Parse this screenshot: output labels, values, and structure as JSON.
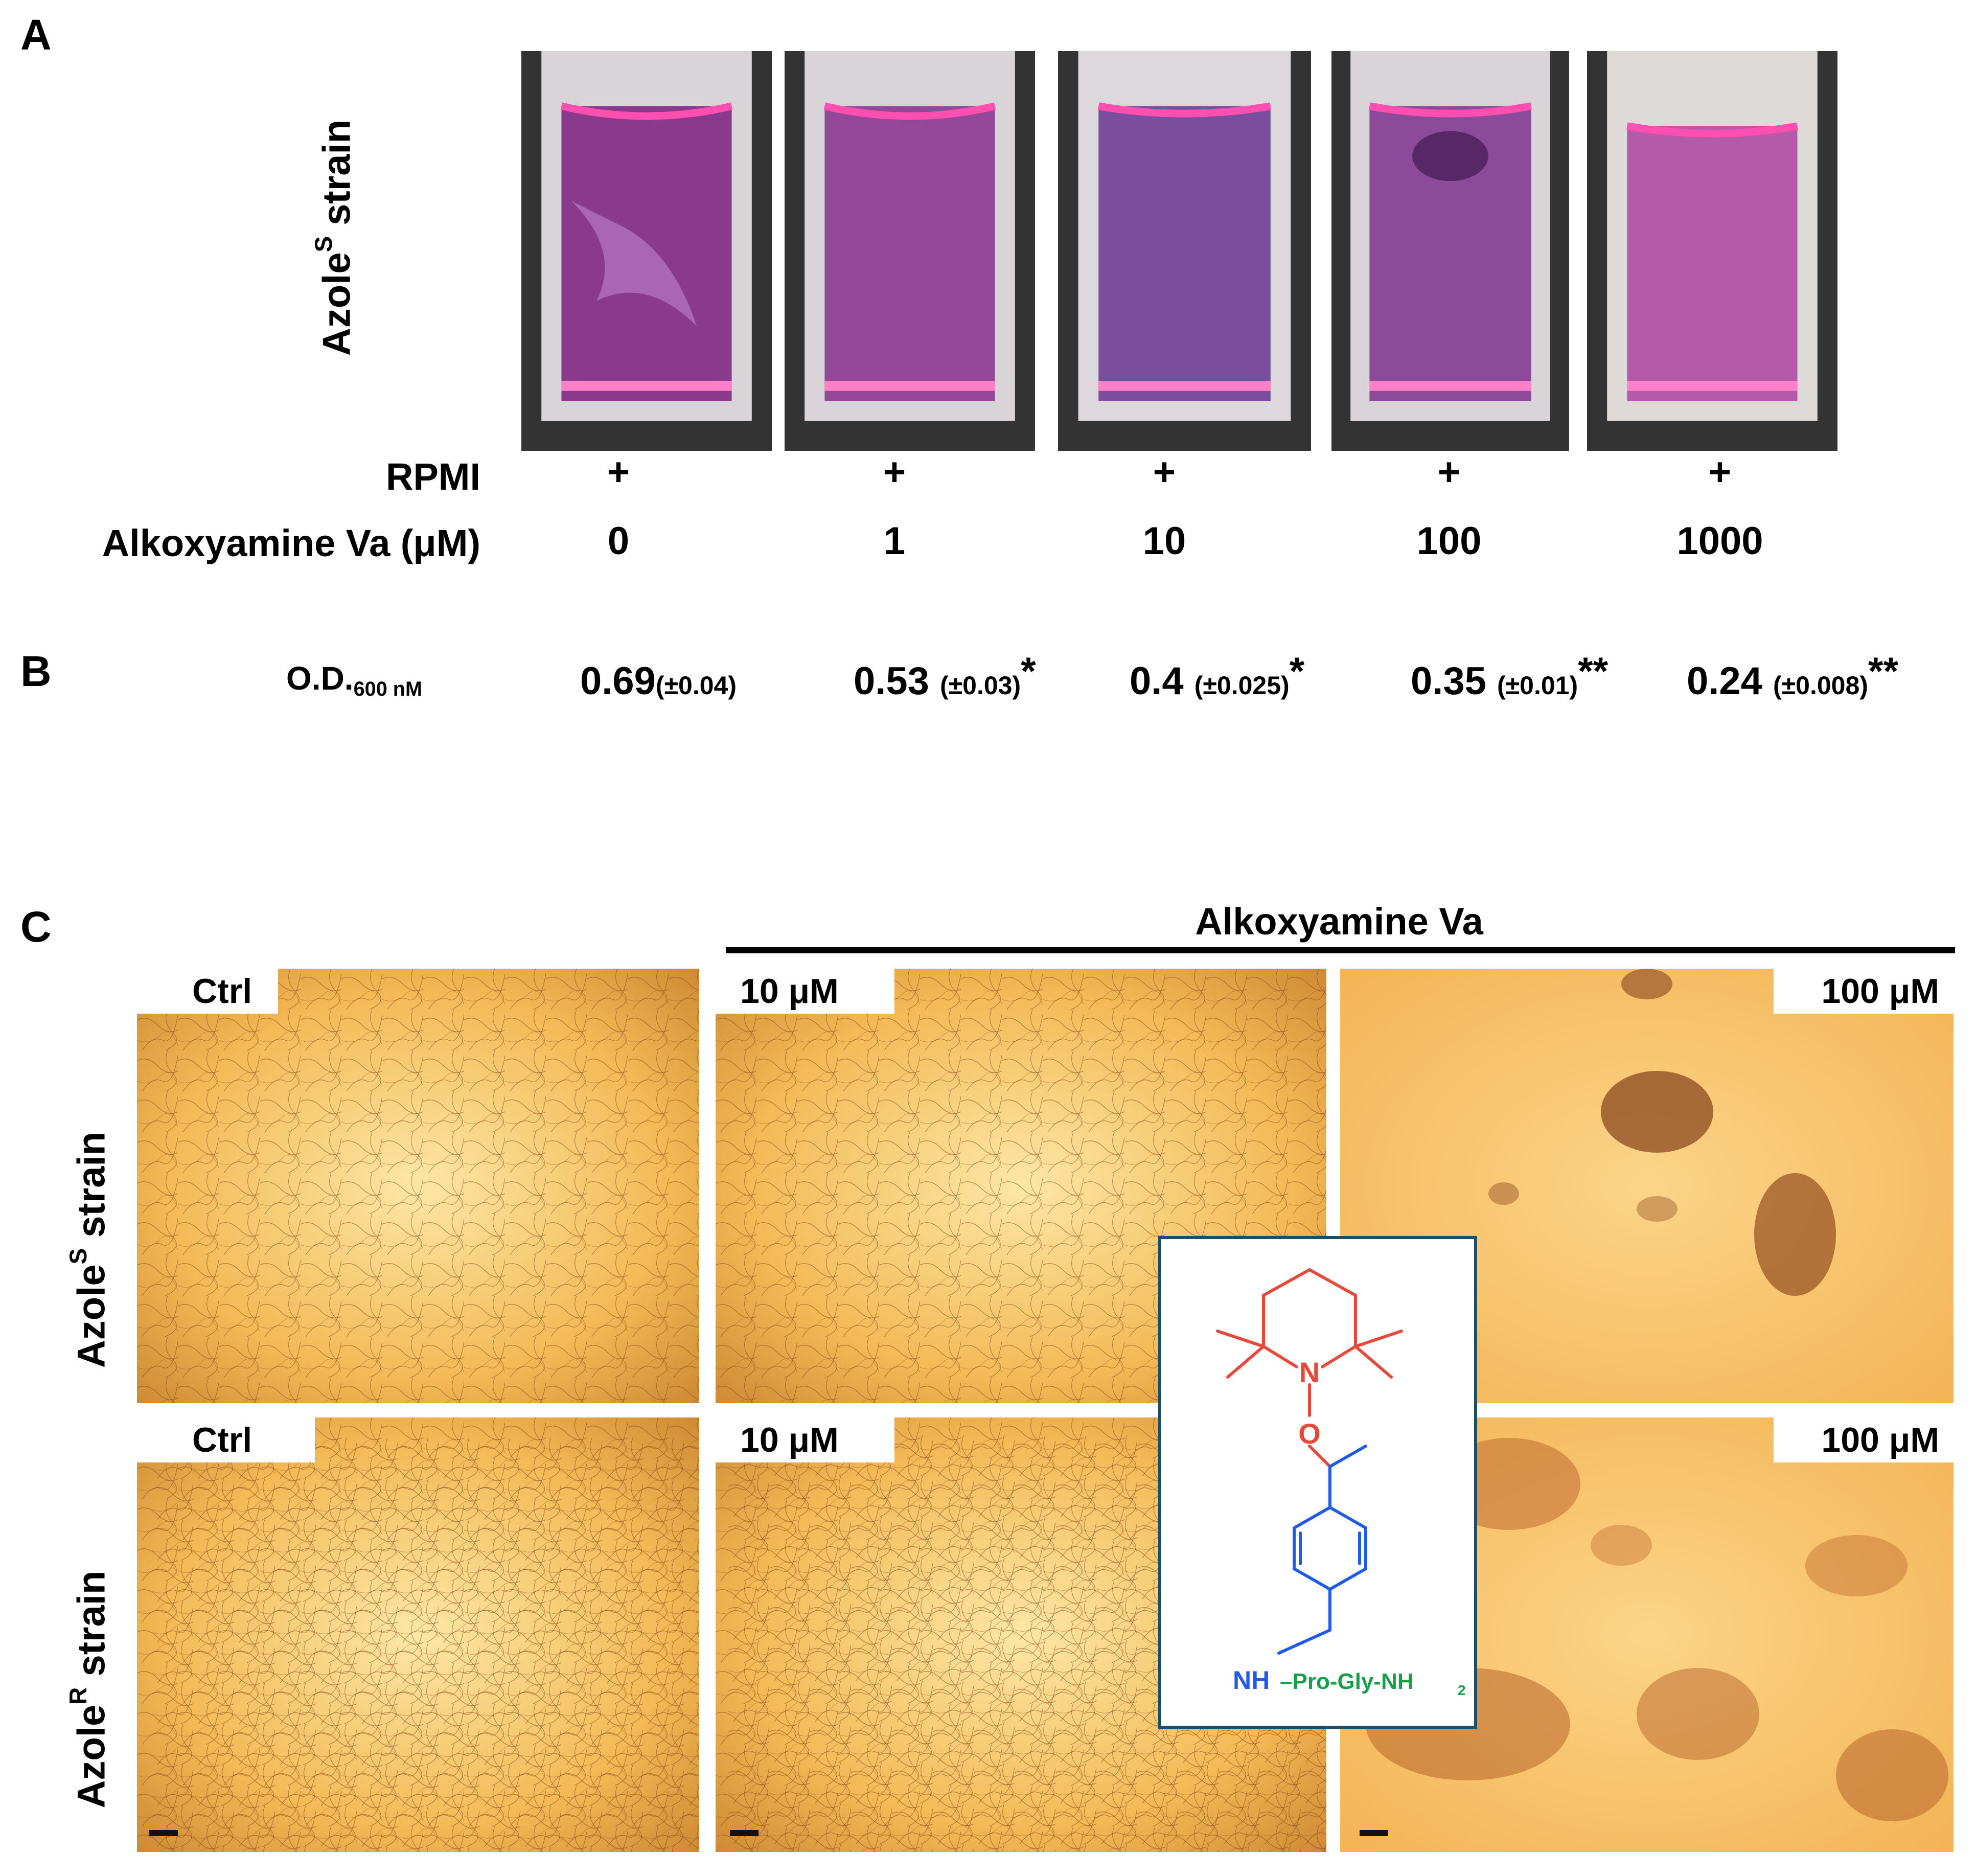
{
  "panelA": {
    "letter": "A",
    "ylabel_main": "Azole",
    "ylabel_sup": "S",
    "ylabel_tail": " strain",
    "rows": [
      {
        "label": "RPMI",
        "values": [
          "+",
          "+",
          "+",
          "+",
          "+"
        ]
      },
      {
        "label": "Alkoxyamine Va (μM)",
        "values": [
          "0",
          "1",
          "10",
          "100",
          "1000"
        ]
      }
    ]
  },
  "panelB": {
    "letter": "B",
    "od_label_main": "O.D.",
    "od_label_sub": "600 nM",
    "values": [
      {
        "value": "0.69",
        "sd": "(±0.04)",
        "sig": ""
      },
      {
        "value": "0.53",
        "sd": "(±0.03)",
        "sig": "*"
      },
      {
        "value": "0.4",
        "sd": "(±0.025)",
        "sig": "*"
      },
      {
        "value": "0.35",
        "sd": "(±0.01)",
        "sig": "**"
      },
      {
        "value": "0.24",
        "sd": "(±0.008)",
        "sig": "**"
      }
    ]
  },
  "panelC": {
    "letter": "C",
    "header": "Alkoxyamine Va",
    "row1_label_main": "Azole",
    "row1_label_sup": "S",
    "row1_label_tail": " strain",
    "row2_label_main": "Azole",
    "row2_label_sup": "R",
    "row2_label_tail": " strain",
    "tags": [
      "Ctrl",
      "10 μM",
      "100 μM",
      "Ctrl",
      "10 μM",
      "100 μM"
    ]
  },
  "structure": {
    "atom_N": "N",
    "atom_O": "O",
    "nh": "NH",
    "peptide": "–Pro-Gly-NH",
    "peptide_sub": "2",
    "colors": {
      "nitroxide": "#e8483a",
      "aryl": "#1f5be8",
      "peptide": "#16a04a",
      "border": "#1f4e63"
    }
  }
}
